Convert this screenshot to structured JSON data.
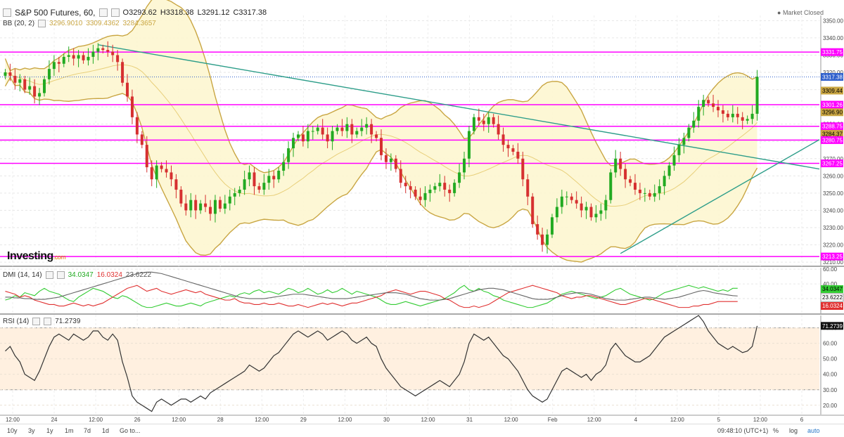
{
  "header": {
    "symbol": "S&P 500 Futures, 60,",
    "open": "O3293.62",
    "high": "H3318.38",
    "low": "L3291.12",
    "close": "C3317.38",
    "market_status": "Market Closed"
  },
  "bb": {
    "label": "BB (20, 2)",
    "v1": "3296.9010",
    "v2": "3309.4362",
    "v3": "3284.3657"
  },
  "dmi": {
    "label": "DMI (14, 14)",
    "v1": "34.0347",
    "v2": "16.0324",
    "v3": "23.6222"
  },
  "rsi": {
    "label": "RSI (14)",
    "v1": "71.2739"
  },
  "brand": {
    "name": "Investing",
    "suffix": ".com"
  },
  "toolbar": {
    "ranges": [
      "10y",
      "3y",
      "1y",
      "1m",
      "7d",
      "1d",
      "Go to..."
    ],
    "time": "09:48:10 (UTC+1)",
    "options": [
      "%",
      "log",
      "auto"
    ]
  },
  "colors": {
    "up": "#22aa22",
    "down": "#d63030",
    "bb_line": "#c9a643",
    "bb_fill": "#fdf6d0",
    "level": "#ff00ff",
    "trend": "#2e9e8a",
    "dmi_plus": "#33cc33",
    "dmi_minus": "#e03030",
    "adx": "#666666",
    "rsi_line": "#333333",
    "rsi_band": "#fff0e0",
    "last_price": "#3060cc"
  },
  "chart_data": [
    {
      "type": "candlestick",
      "title": "S&P 500 Futures, 60",
      "x_ticks": [
        "12:00",
        "24",
        "12:00",
        "26",
        "12:00",
        "28",
        "12:00",
        "29",
        "12:00",
        "30",
        "12:00",
        "31",
        "12:00",
        "Feb",
        "12:00",
        "4",
        "12:00",
        "5",
        "12:00",
        "6"
      ],
      "y_ticks": [
        3210,
        3220,
        3230,
        3240,
        3250,
        3260,
        3270,
        3280,
        3290,
        3300,
        3310,
        3320,
        3330,
        3340,
        3350
      ],
      "ylim": [
        3208,
        3353
      ],
      "closes": [
        3320,
        3318,
        3314,
        3316,
        3310,
        3312,
        3306,
        3308,
        3316,
        3322,
        3326,
        3325,
        3329,
        3330,
        3328,
        3330,
        3327,
        3329,
        3332,
        3334,
        3333,
        3332,
        3330,
        3326,
        3314,
        3306,
        3294,
        3284,
        3278,
        3265,
        3258,
        3266,
        3264,
        3262,
        3258,
        3252,
        3244,
        3240,
        3246,
        3240,
        3244,
        3242,
        3238,
        3246,
        3241,
        3244,
        3248,
        3250,
        3252,
        3258,
        3262,
        3254,
        3252,
        3256,
        3260,
        3258,
        3263,
        3268,
        3276,
        3282,
        3284,
        3280,
        3286,
        3286,
        3288,
        3284,
        3280,
        3286,
        3288,
        3286,
        3290,
        3284,
        3286,
        3288,
        3290,
        3284,
        3282,
        3272,
        3268,
        3270,
        3264,
        3256,
        3254,
        3252,
        3248,
        3246,
        3250,
        3252,
        3254,
        3256,
        3252,
        3250,
        3256,
        3262,
        3270,
        3286,
        3294,
        3292,
        3290,
        3294,
        3290,
        3284,
        3278,
        3276,
        3274,
        3270,
        3258,
        3248,
        3232,
        3226,
        3220,
        3226,
        3236,
        3242,
        3248,
        3248,
        3246,
        3244,
        3240,
        3242,
        3236,
        3238,
        3240,
        3246,
        3262,
        3270,
        3264,
        3258,
        3256,
        3252,
        3250,
        3250,
        3248,
        3250,
        3254,
        3260,
        3266,
        3272,
        3278,
        3282,
        3288,
        3292,
        3300,
        3304,
        3302,
        3300,
        3298,
        3296,
        3294,
        3296,
        3294,
        3292,
        3293,
        3296,
        3317.38
      ],
      "levels": [
        3331.75,
        3301.26,
        3288.75,
        3280.75,
        3267.25,
        3213.25
      ],
      "price_labels": [
        "3331.75",
        "3317.38",
        "3309.44",
        "3301.26",
        "3296.90",
        "3288.75",
        "3284.37",
        "3280.75",
        "3267.25",
        "3213.25"
      ],
      "trendlines": [
        {
          "from": [
            19,
            3336
          ],
          "to": [
            192,
            3264
          ]
        },
        {
          "from": [
            126,
            3215
          ],
          "to": [
            192,
            3281
          ]
        }
      ],
      "bollinger": {
        "period": 20,
        "stddev": 2
      }
    },
    {
      "type": "line",
      "title": "DMI (14, 14)",
      "y_ticks": [
        20,
        40,
        60
      ],
      "ylim": [
        0,
        62
      ],
      "series": [
        {
          "name": "+DI",
          "values": [
            18,
            20,
            24,
            22,
            28,
            26,
            24,
            30,
            34,
            30,
            28,
            26,
            22,
            18,
            16,
            22,
            26,
            30,
            34,
            32,
            30,
            26,
            22,
            20,
            24,
            22,
            18,
            14,
            10,
            8,
            8,
            10,
            12,
            14,
            12,
            10,
            10,
            12,
            14,
            12,
            10,
            14,
            16,
            18,
            20,
            22,
            24,
            22,
            26,
            28,
            26,
            30,
            32,
            28,
            30,
            28,
            26,
            30,
            34,
            32,
            28,
            30,
            34,
            30,
            26,
            28,
            32,
            28,
            30,
            34,
            30,
            26,
            30,
            28,
            26,
            24,
            22,
            18,
            14,
            12,
            12,
            14,
            16,
            14,
            12,
            10,
            12,
            14,
            16,
            18,
            20,
            24,
            28,
            34,
            38,
            32,
            30,
            34,
            30,
            28,
            24,
            22,
            18,
            16,
            14,
            12,
            10,
            8,
            8,
            10,
            12,
            14,
            18,
            22,
            26,
            28,
            30,
            28,
            26,
            24,
            22,
            20,
            22,
            24,
            28,
            32,
            34,
            30,
            26,
            24,
            22,
            20,
            18,
            20,
            24,
            28,
            30,
            32,
            34,
            36,
            38,
            36,
            34,
            36,
            34,
            32,
            30,
            32,
            30,
            34,
            34
          ]
        },
        {
          "name": "-DI",
          "values": [
            30,
            28,
            26,
            22,
            24,
            22,
            18,
            16,
            14,
            12,
            12,
            10,
            10,
            12,
            14,
            12,
            10,
            12,
            10,
            12,
            14,
            18,
            22,
            26,
            30,
            34,
            36,
            38,
            34,
            30,
            32,
            34,
            30,
            28,
            26,
            28,
            30,
            32,
            30,
            28,
            30,
            26,
            24,
            22,
            20,
            18,
            18,
            20,
            16,
            14,
            14,
            12,
            12,
            14,
            12,
            12,
            14,
            12,
            10,
            10,
            12,
            10,
            8,
            10,
            12,
            14,
            12,
            14,
            12,
            10,
            12,
            14,
            14,
            16,
            18,
            20,
            22,
            24,
            28,
            30,
            32,
            30,
            28,
            26,
            28,
            30,
            30,
            28,
            26,
            24,
            20,
            18,
            14,
            10,
            8,
            8,
            10,
            8,
            10,
            12,
            16,
            20,
            24,
            28,
            30,
            32,
            34,
            36,
            38,
            36,
            34,
            32,
            30,
            28,
            24,
            22,
            20,
            22,
            22,
            24,
            24,
            22,
            20,
            18,
            16,
            14,
            12,
            12,
            14,
            16,
            18,
            20,
            20,
            18,
            16,
            14,
            12,
            10,
            8,
            8,
            8,
            10,
            10,
            12,
            12,
            14,
            16,
            16,
            16,
            16,
            16
          ]
        },
        {
          "name": "ADX",
          "values": [
            22,
            22,
            21,
            21,
            20,
            20,
            19,
            19,
            19,
            20,
            21,
            22,
            24,
            26,
            28,
            30,
            32,
            34,
            36,
            38,
            40,
            42,
            44,
            46,
            48,
            50,
            52,
            54,
            55,
            56,
            56,
            55,
            54,
            52,
            50,
            48,
            46,
            44,
            42,
            40,
            38,
            36,
            34,
            32,
            30,
            28,
            26,
            24,
            22,
            21,
            20,
            20,
            20,
            20,
            21,
            22,
            23,
            24,
            25,
            26,
            26,
            26,
            25,
            24,
            23,
            22,
            21,
            20,
            20,
            20,
            20,
            21,
            22,
            23,
            24,
            25,
            26,
            27,
            28,
            28,
            28,
            27,
            26,
            24,
            22,
            20,
            19,
            18,
            18,
            18,
            19,
            20,
            22,
            24,
            26,
            28,
            30,
            32,
            33,
            34,
            34,
            33,
            32,
            30,
            28,
            26,
            24,
            22,
            20,
            19,
            19,
            19,
            20,
            22,
            24,
            26,
            27,
            28,
            28,
            27,
            26,
            24,
            22,
            20,
            19,
            18,
            18,
            18,
            19,
            20,
            21,
            22,
            22,
            21,
            20,
            19,
            20,
            21,
            22,
            24,
            26,
            28,
            30,
            31,
            30,
            28,
            27,
            26,
            25,
            24,
            23.6
          ]
        }
      ]
    },
    {
      "type": "line",
      "title": "RSI (14)",
      "y_ticks": [
        20,
        30,
        40,
        50,
        60,
        70
      ],
      "ylim": [
        14,
        78
      ],
      "band": [
        30,
        70
      ],
      "series": [
        {
          "name": "RSI",
          "values": [
            55,
            58,
            52,
            48,
            40,
            38,
            36,
            42,
            50,
            58,
            64,
            66,
            64,
            62,
            66,
            64,
            62,
            64,
            68,
            68,
            64,
            62,
            66,
            62,
            48,
            38,
            26,
            22,
            20,
            18,
            16,
            22,
            24,
            22,
            20,
            22,
            24,
            24,
            22,
            24,
            26,
            24,
            28,
            30,
            32,
            34,
            36,
            38,
            40,
            42,
            46,
            44,
            42,
            44,
            48,
            52,
            54,
            58,
            62,
            66,
            68,
            66,
            64,
            66,
            68,
            66,
            62,
            64,
            66,
            68,
            66,
            62,
            60,
            62,
            64,
            60,
            58,
            50,
            44,
            40,
            36,
            32,
            30,
            28,
            26,
            28,
            30,
            32,
            34,
            36,
            34,
            32,
            36,
            40,
            48,
            60,
            66,
            64,
            62,
            64,
            60,
            56,
            52,
            50,
            46,
            42,
            36,
            30,
            26,
            24,
            22,
            24,
            30,
            36,
            42,
            44,
            42,
            40,
            38,
            40,
            36,
            40,
            42,
            46,
            56,
            60,
            56,
            52,
            50,
            48,
            48,
            50,
            52,
            56,
            60,
            64,
            66,
            68,
            70,
            72,
            74,
            76,
            78,
            74,
            68,
            64,
            60,
            58,
            56,
            58,
            56,
            54,
            55,
            58,
            71.27
          ]
        }
      ]
    }
  ]
}
